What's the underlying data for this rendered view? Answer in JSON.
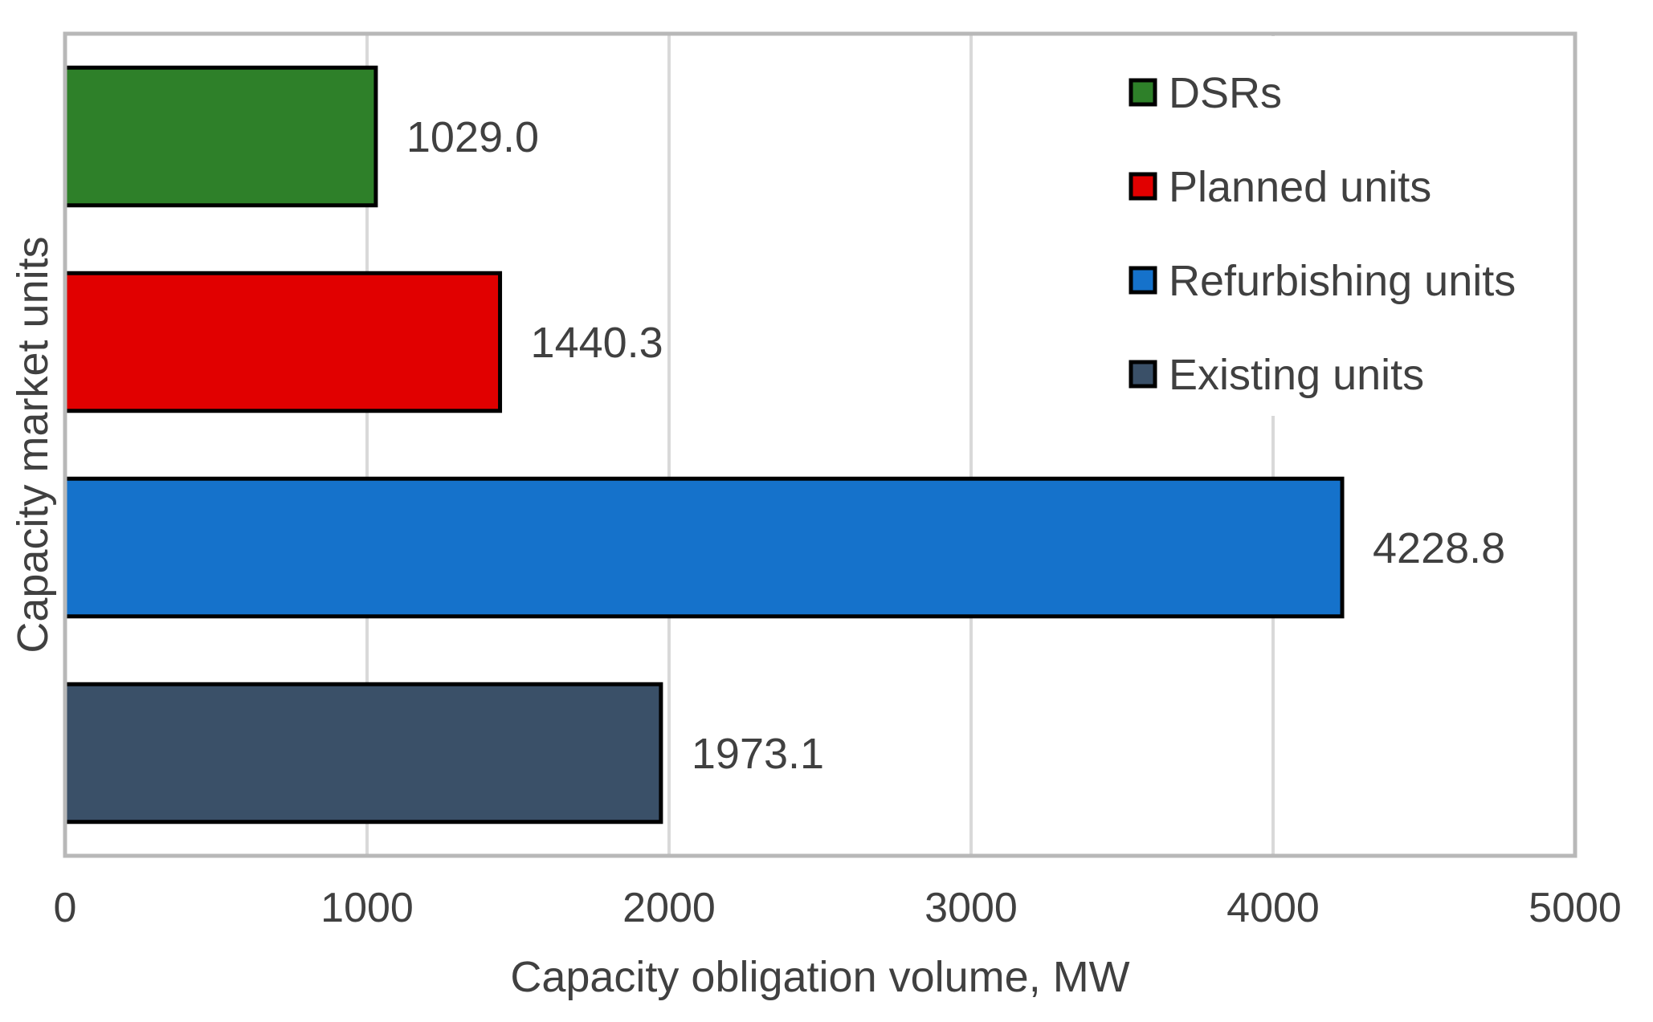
{
  "chart_data": {
    "type": "bar",
    "orientation": "horizontal",
    "title": "",
    "xlabel": "Capacity obligation volume, MW",
    "ylabel": "Capacity market units",
    "xlim": [
      0,
      5000
    ],
    "xticks": [
      0,
      1000,
      2000,
      3000,
      4000,
      5000
    ],
    "grid": true,
    "legend_position": "top-right",
    "categories": [
      "DSRs",
      "Planned units",
      "Refurbishing units",
      "Existing units"
    ],
    "values": [
      1029.0,
      1440.3,
      4228.8,
      1973.1
    ],
    "value_labels": [
      "1029.0",
      "1440.3",
      "4228.8",
      "1973.1"
    ],
    "colors": [
      "#2e8029",
      "#e10000",
      "#1572cb",
      "#3a5068"
    ],
    "legend": [
      {
        "label": "DSRs",
        "color": "#2e8029"
      },
      {
        "label": "Planned units",
        "color": "#e10000"
      },
      {
        "label": "Refurbishing units",
        "color": "#1572cb"
      },
      {
        "label": "Existing units",
        "color": "#3a5068"
      }
    ]
  }
}
